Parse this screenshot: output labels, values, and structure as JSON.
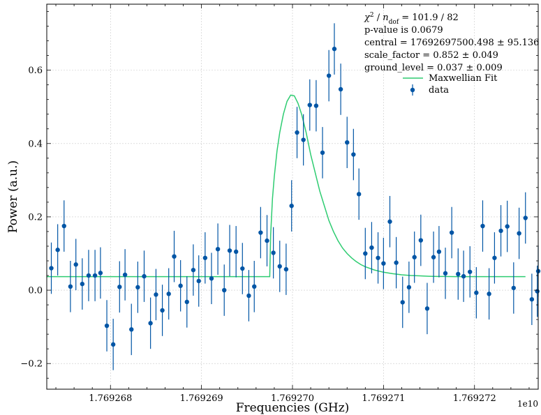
{
  "chart_data": {
    "type": "scatter",
    "xlabel": "Frequencies (GHz)",
    "ylabel": "Power (a.u.)",
    "x_offset_label": "1e10",
    "xlim": [
      17692673000,
      17692727000
    ],
    "ylim": [
      -0.27,
      0.78
    ],
    "x_ticks": [
      17692680000,
      17692690000,
      17692700000,
      17692710000,
      17692720000
    ],
    "x_tick_labels": [
      "1.769268",
      "1.769269",
      "1.769270",
      "1.769271",
      "1.769272"
    ],
    "y_ticks": [
      -0.2,
      0.0,
      0.2,
      0.4,
      0.6
    ],
    "y_tick_labels": [
      "−0.2",
      "0.0",
      "0.2",
      "0.4",
      "0.6"
    ],
    "grid": true,
    "legend_position": "top-right",
    "stats_lines": [
      "χ² / n_dof = 101.9 / 82",
      "p-value is 0.0679",
      "central = 17692697500.498 ± 95.136",
      "scale_factor = 0.852 ± 0.049",
      "ground_level = 0.037 ± 0.009"
    ],
    "stats": {
      "chi2_prefix": "χ",
      "chi2_sup": "2",
      "chi2_sep": " / ",
      "chi2_n": "n",
      "chi2_sub": "dof",
      "chi2_value": " = 101.9 / 82",
      "p_value": "p-value is 0.0679",
      "central": "central = 17692697500.498 ± 95.136",
      "scale_factor": "scale_factor = 0.852 ± 0.049",
      "ground_level": "ground_level = 0.037 ± 0.009"
    },
    "legend": [
      {
        "label": "Maxwellian Fit",
        "kind": "line",
        "color": "#2ecc71"
      },
      {
        "label": "data",
        "kind": "errorbar",
        "color": "#0055a5"
      }
    ],
    "fit": {
      "name": "Maxwellian Fit",
      "color": "#2ecc71",
      "x": [
        17692673000,
        17692675000,
        17692677000,
        17692679000,
        17692681000,
        17692683000,
        17692685000,
        17692687000,
        17692689000,
        17692691000,
        17692693000,
        17692695000,
        17692697000,
        17692697500,
        17692697600,
        17692697800,
        17692698000,
        17692698300,
        17692698600,
        17692699000,
        17692699400,
        17692699800,
        17692700200,
        17692700600,
        17692701000,
        17692701500,
        17692702000,
        17692702500,
        17692703000,
        17692703500,
        17692704000,
        17692704500,
        17692705000,
        17692705500,
        17692706000,
        17692706500,
        17692707000,
        17692707500,
        17692708000,
        17692709000,
        17692710000,
        17692711000,
        17692712000,
        17692713000,
        17692714000,
        17692715000,
        17692716000,
        17692718000,
        17692720000,
        17692722000,
        17692724000,
        17692725600
      ],
      "y": [
        0.037,
        0.037,
        0.037,
        0.037,
        0.037,
        0.037,
        0.037,
        0.037,
        0.037,
        0.037,
        0.037,
        0.037,
        0.037,
        0.037,
        0.15,
        0.25,
        0.31,
        0.38,
        0.43,
        0.48,
        0.515,
        0.532,
        0.53,
        0.51,
        0.48,
        0.43,
        0.37,
        0.32,
        0.27,
        0.23,
        0.19,
        0.16,
        0.135,
        0.115,
        0.1,
        0.088,
        0.078,
        0.07,
        0.064,
        0.055,
        0.049,
        0.045,
        0.042,
        0.04,
        0.039,
        0.038,
        0.0375,
        0.037,
        0.037,
        0.037,
        0.037,
        0.037
      ]
    },
    "series": [
      {
        "name": "data",
        "color": "#0055a5",
        "x": [
          17692673500,
          17692674200,
          17692674900,
          17692675600,
          17692676200,
          17692676900,
          17692677600,
          17692678300,
          17692678900,
          17692679600,
          17692680300,
          17692681000,
          17692681600,
          17692682300,
          17692683000,
          17692683700,
          17692684400,
          17692685000,
          17692685700,
          17692686400,
          17692687000,
          17692687700,
          17692688400,
          17692689100,
          17692689700,
          17692690400,
          17692691100,
          17692691800,
          17692692500,
          17692693100,
          17692693800,
          17692694500,
          17692695200,
          17692695800,
          17692696500,
          17692697200,
          17692697900,
          17692698600,
          17692699300,
          17692699900,
          17692700500,
          17692701200,
          17692701900,
          17692702600,
          17692703300,
          17692704000,
          17692704600,
          17692705300,
          17692706000,
          17692706700,
          17692707300,
          17692708000,
          17692708700,
          17692709400,
          17692710000,
          17692710700,
          17692711400,
          17692712100,
          17692712800,
          17692713400,
          17692714100,
          17692714800,
          17692715500,
          17692716100,
          17692716800,
          17692717500,
          17692718200,
          17692718800,
          17692719500,
          17692720200,
          17692720900,
          17692721600,
          17692722200,
          17692722900,
          17692723600,
          17692724300,
          17692724900,
          17692725600,
          17692726300,
          17692726900,
          17692727000,
          17692727200,
          17692727400,
          17692727600
        ],
        "y": [
          0.06,
          0.11,
          0.175,
          0.01,
          0.07,
          0.017,
          0.04,
          0.04,
          0.047,
          -0.097,
          -0.148,
          0.009,
          0.042,
          -0.107,
          0.008,
          0.038,
          -0.09,
          -0.012,
          -0.055,
          -0.01,
          0.092,
          0.012,
          -0.032,
          0.055,
          0.025,
          0.088,
          0.032,
          0.112,
          0.0,
          0.108,
          0.105,
          0.059,
          -0.015,
          0.01,
          0.157,
          0.135,
          0.102,
          0.065,
          0.057,
          0.23,
          0.43,
          0.41,
          0.505,
          0.503,
          0.375,
          0.585,
          0.658,
          0.548,
          0.403,
          0.37,
          0.262,
          0.1,
          0.116,
          0.088,
          0.073,
          0.187,
          0.075,
          -0.033,
          0.008,
          0.09,
          0.136,
          -0.05,
          0.09,
          0.105,
          0.046,
          0.157,
          0.044,
          0.038,
          0.05,
          -0.007,
          0.175,
          -0.01,
          0.088,
          0.162,
          0.174,
          0.006,
          0.155,
          0.197,
          -0.025,
          -0.003,
          0.052,
          -0.045,
          0.093,
          -0.013
        ],
        "yerr": [
          0.07,
          0.07,
          0.07,
          0.07,
          0.07,
          0.07,
          0.07,
          0.07,
          0.07,
          0.07,
          0.07,
          0.07,
          0.07,
          0.07,
          0.07,
          0.07,
          0.07,
          0.07,
          0.07,
          0.07,
          0.07,
          0.07,
          0.07,
          0.07,
          0.07,
          0.07,
          0.07,
          0.07,
          0.07,
          0.07,
          0.07,
          0.07,
          0.07,
          0.07,
          0.07,
          0.07,
          0.07,
          0.07,
          0.07,
          0.07,
          0.07,
          0.07,
          0.07,
          0.07,
          0.07,
          0.07,
          0.07,
          0.07,
          0.07,
          0.07,
          0.07,
          0.07,
          0.07,
          0.07,
          0.07,
          0.07,
          0.07,
          0.07,
          0.07,
          0.07,
          0.07,
          0.07,
          0.07,
          0.07,
          0.07,
          0.07,
          0.07,
          0.07,
          0.07,
          0.07,
          0.07,
          0.07,
          0.07,
          0.07,
          0.07,
          0.07,
          0.07,
          0.07,
          0.07,
          0.07,
          0.07,
          0.07,
          0.07,
          0.07
        ]
      }
    ]
  }
}
